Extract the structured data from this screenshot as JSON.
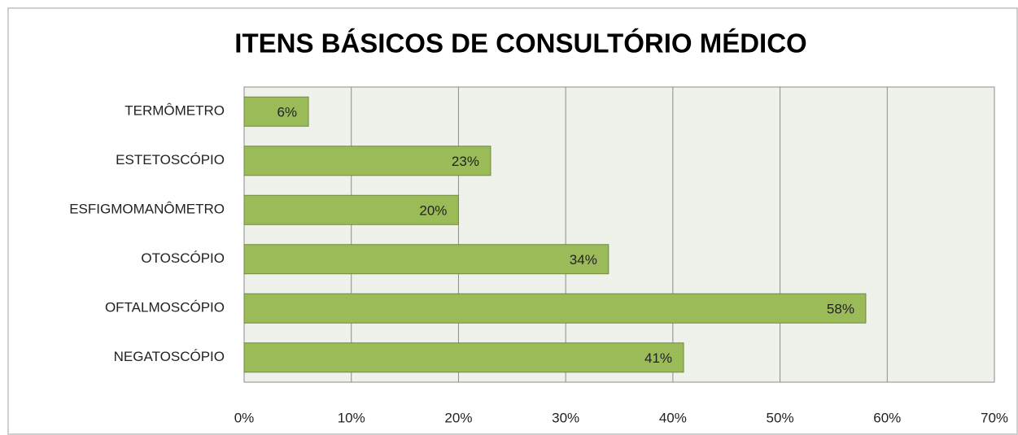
{
  "chart_data": {
    "type": "barh",
    "title": "ITENS BÁSICOS DE CONSULTÓRIO MÉDICO",
    "categories": [
      "TERMÔMETRO",
      "ESTETOSCÓPIO",
      "ESFIGMOMANÔMETRO",
      "OTOSCÓPIO",
      "OFTALMOSCÓPIO",
      "NEGATOSCÓPIO"
    ],
    "values": [
      6,
      23,
      20,
      34,
      58,
      41
    ],
    "value_labels": [
      "6%",
      "23%",
      "20%",
      "34%",
      "58%",
      "41%"
    ],
    "color": "#9bbb59",
    "xlim": [
      0,
      70
    ],
    "xticks": [
      {
        "value": 0,
        "label": "0%"
      },
      {
        "value": 10,
        "label": "10%"
      },
      {
        "value": 20,
        "label": "20%"
      },
      {
        "value": 30,
        "label": "30%"
      },
      {
        "value": 40,
        "label": "40%"
      },
      {
        "value": 50,
        "label": "50%"
      },
      {
        "value": 60,
        "label": "60%"
      },
      {
        "value": 70,
        "label": "70%"
      }
    ],
    "grid": true
  }
}
